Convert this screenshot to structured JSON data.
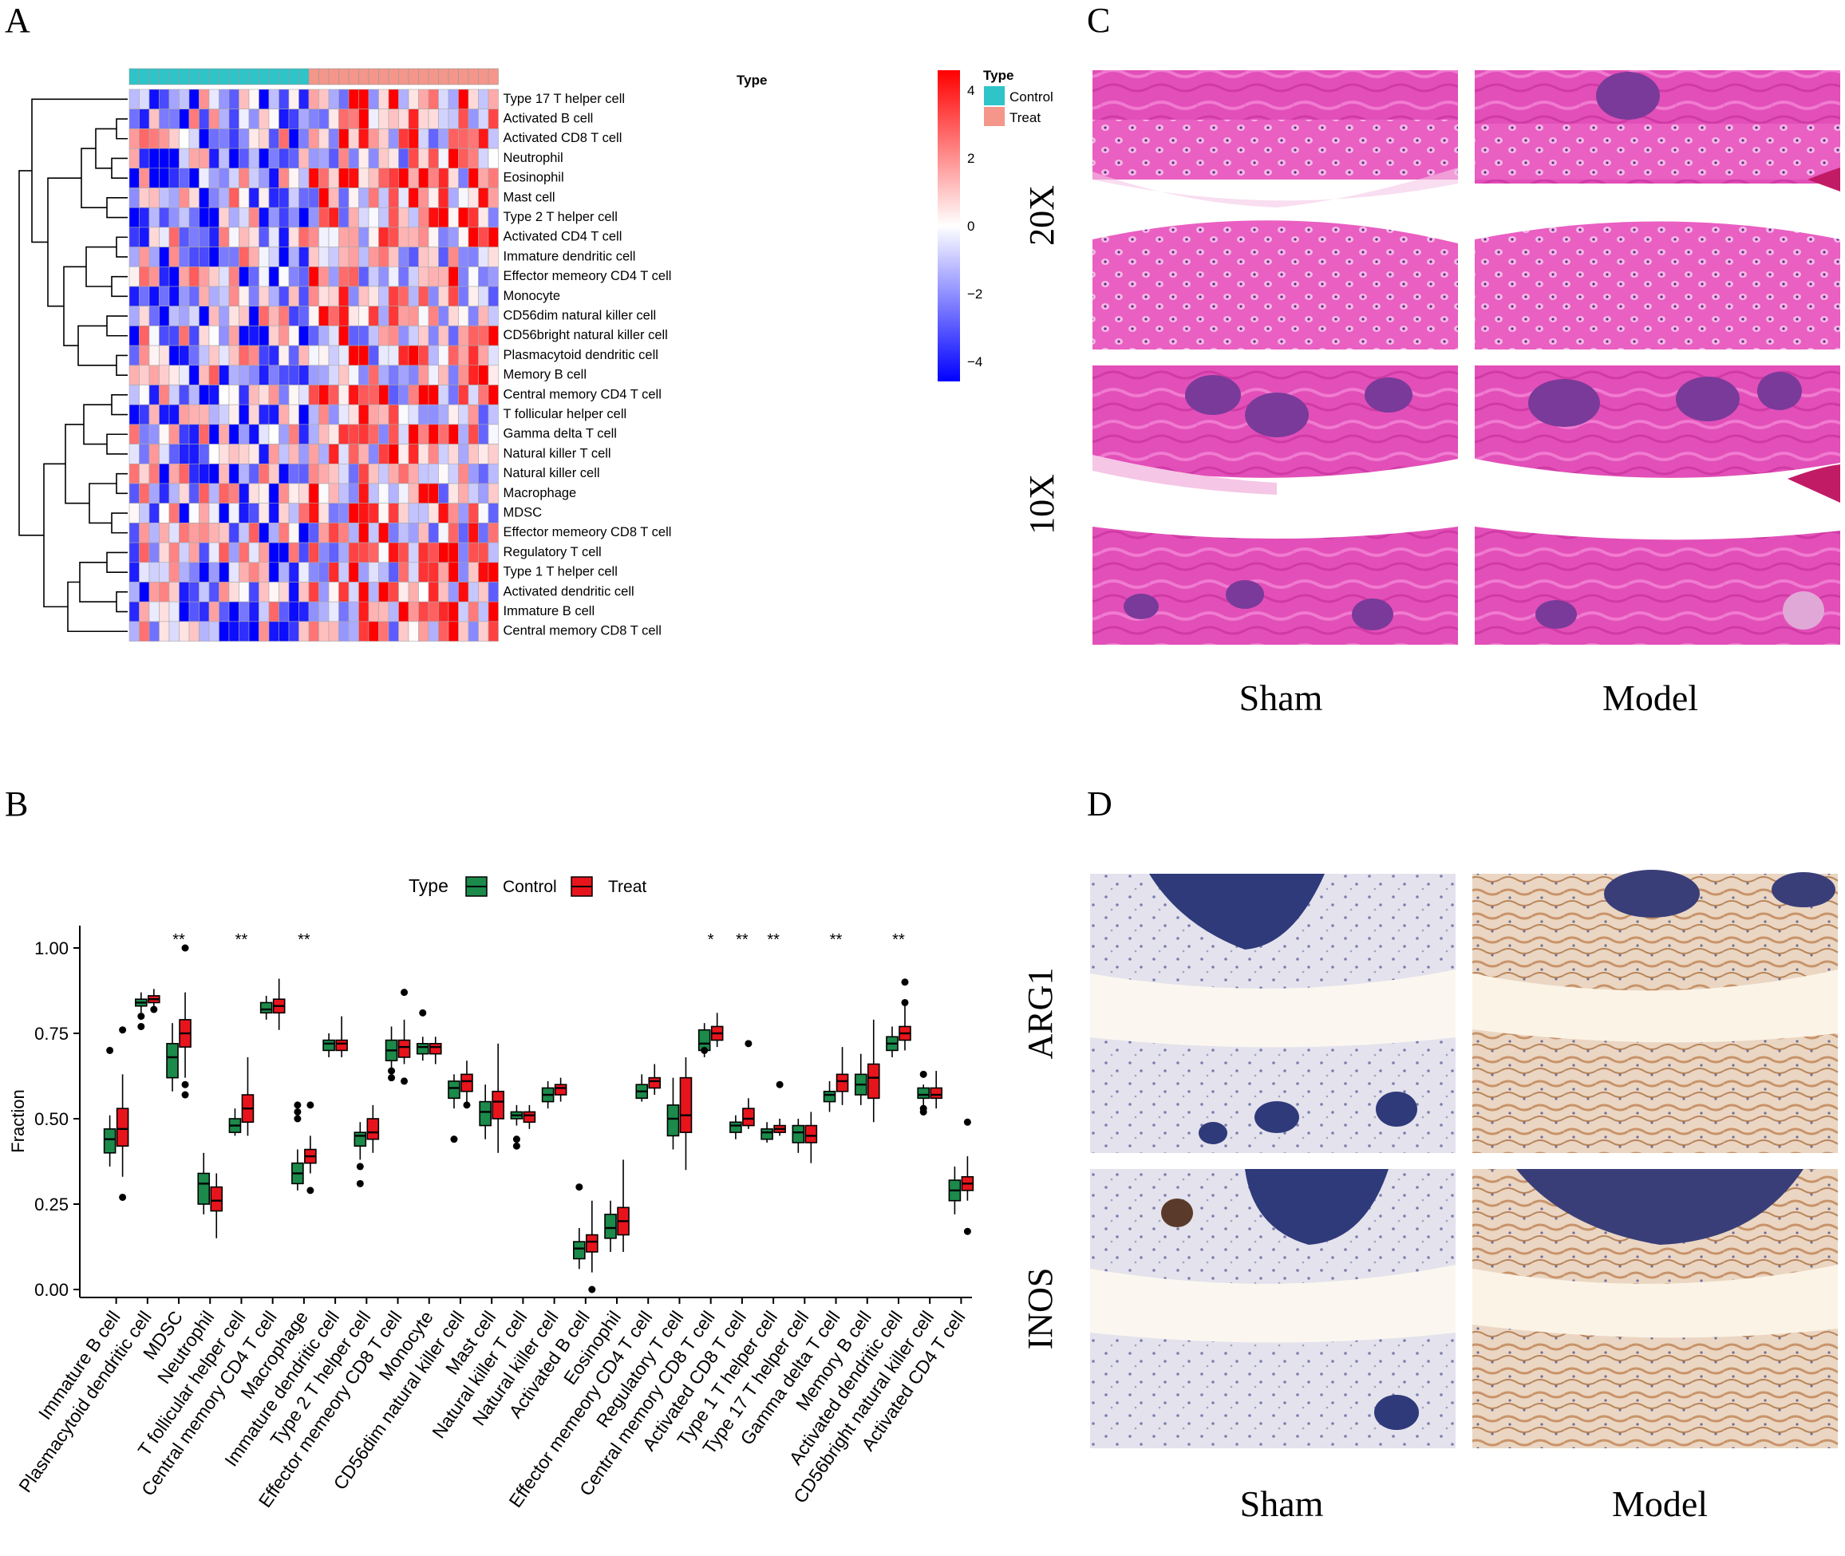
{
  "panels": {
    "a": "A",
    "b": "B",
    "c": "C",
    "d": "D"
  },
  "heatmap": {
    "annotation_label": "Type",
    "legend_title": "Type",
    "groups": [
      {
        "name": "Control",
        "color": "#2ec4c8",
        "count": 18
      },
      {
        "name": "Treat",
        "color": "#f4968a",
        "count": 19
      }
    ],
    "color_scale": {
      "low": "#0000ff",
      "mid": "#ffffff",
      "high": "#ff0000",
      "ticks": [
        "4",
        "2",
        "0",
        "−2",
        "−4"
      ]
    },
    "rows": [
      "Type 17 T helper cell",
      "Activated B cell",
      "Activated CD8 T cell",
      "Neutrophil",
      "Eosinophil",
      "Mast cell",
      "Type 2 T helper cell",
      "Activated CD4 T cell",
      "Immature dendritic cell",
      "Effector memeory CD4 T cell",
      "Monocyte",
      "CD56dim natural killer cell",
      "CD56bright natural killer cell",
      "Plasmacytoid dendritic cell",
      "Memory B cell",
      "Central memory CD4 T cell",
      "T follicular helper cell",
      "Gamma delta T cell",
      "Natural killer T cell",
      "Natural killer cell",
      "Macrophage",
      "MDSC",
      "Effector memeory CD8 T cell",
      "Regulatory T cell",
      "Type 1 T helper cell",
      "Activated dendritic cell",
      "Immature  B cell",
      "Central memory CD8 T cell"
    ]
  },
  "chart_data": {
    "type": "box",
    "legend": {
      "title": "Type",
      "items": [
        {
          "name": "Control",
          "color": "#1b8a4a"
        },
        {
          "name": "Treat",
          "color": "#e8141c"
        }
      ],
      "placement": "top"
    },
    "ylabel": "Fraction",
    "ylim": [
      0,
      1.0
    ],
    "yticks": [
      "0.00",
      "0.25",
      "0.50",
      "0.75",
      "1.00"
    ],
    "categories": [
      "Immature  B cell",
      "Plasmacytoid dendritic cell",
      "MDSC",
      "Neutrophil",
      "T follicular helper cell",
      "Central memory CD4 T cell",
      "Macrophage",
      "Immature dendritic cell",
      "Type 2 T helper cell",
      "Effector memeory CD8 T cell",
      "Monocyte",
      "CD56dim natural killer cell",
      "Mast cell",
      "Natural killer T cell",
      "Natural killer cell",
      "Activated B cell",
      "Eosinophil",
      "Effector memeory CD4 T cell",
      "Regulatory T cell",
      "Central memory CD8 T cell",
      "Activated CD8 T cell",
      "Type 1 T helper cell",
      "Type 17 T helper cell",
      "Gamma delta T cell",
      "Memory B cell",
      "Activated dendritic cell",
      "CD56bright natural killer cell",
      "Activated CD4 T cell"
    ],
    "significance": [
      "",
      "",
      "**",
      "",
      "**",
      "",
      "**",
      "",
      "",
      "",
      "",
      "",
      "",
      "",
      "",
      "",
      "",
      "",
      "",
      "*",
      "**",
      "**",
      "",
      "**",
      "",
      "**",
      "",
      ""
    ],
    "control": [
      [
        0.36,
        0.4,
        0.44,
        0.47,
        0.51
      ],
      [
        0.81,
        0.83,
        0.84,
        0.85,
        0.87
      ],
      [
        0.58,
        0.62,
        0.68,
        0.72,
        0.78
      ],
      [
        0.22,
        0.25,
        0.31,
        0.34,
        0.4
      ],
      [
        0.45,
        0.46,
        0.48,
        0.5,
        0.53
      ],
      [
        0.79,
        0.81,
        0.82,
        0.84,
        0.86
      ],
      [
        0.29,
        0.31,
        0.34,
        0.37,
        0.41
      ],
      [
        0.68,
        0.7,
        0.72,
        0.73,
        0.75
      ],
      [
        0.38,
        0.42,
        0.45,
        0.46,
        0.49
      ],
      [
        0.64,
        0.67,
        0.7,
        0.73,
        0.77
      ],
      [
        0.67,
        0.69,
        0.71,
        0.72,
        0.74
      ],
      [
        0.53,
        0.56,
        0.59,
        0.61,
        0.63
      ],
      [
        0.44,
        0.48,
        0.52,
        0.55,
        0.6
      ],
      [
        0.48,
        0.5,
        0.51,
        0.52,
        0.54
      ],
      [
        0.53,
        0.55,
        0.57,
        0.59,
        0.61
      ],
      [
        0.06,
        0.09,
        0.12,
        0.14,
        0.18
      ],
      [
        0.11,
        0.15,
        0.18,
        0.22,
        0.26
      ],
      [
        0.55,
        0.56,
        0.58,
        0.6,
        0.63
      ],
      [
        0.41,
        0.45,
        0.5,
        0.54,
        0.62
      ],
      [
        0.68,
        0.7,
        0.72,
        0.76,
        0.78
      ],
      [
        0.44,
        0.46,
        0.48,
        0.49,
        0.51
      ],
      [
        0.43,
        0.44,
        0.46,
        0.47,
        0.49
      ],
      [
        0.4,
        0.43,
        0.46,
        0.48,
        0.5
      ],
      [
        0.52,
        0.55,
        0.57,
        0.58,
        0.61
      ],
      [
        0.54,
        0.57,
        0.6,
        0.63,
        0.69
      ],
      [
        0.68,
        0.7,
        0.72,
        0.74,
        0.77
      ],
      [
        0.54,
        0.56,
        0.57,
        0.59,
        0.6
      ],
      [
        0.22,
        0.26,
        0.29,
        0.32,
        0.36
      ]
    ],
    "treat": [
      [
        0.33,
        0.42,
        0.47,
        0.53,
        0.63
      ],
      [
        0.83,
        0.84,
        0.85,
        0.86,
        0.88
      ],
      [
        0.62,
        0.71,
        0.75,
        0.79,
        0.87
      ],
      [
        0.15,
        0.23,
        0.26,
        0.3,
        0.34
      ],
      [
        0.45,
        0.49,
        0.53,
        0.57,
        0.68
      ],
      [
        0.76,
        0.81,
        0.83,
        0.85,
        0.91
      ],
      [
        0.34,
        0.37,
        0.39,
        0.41,
        0.45
      ],
      [
        0.68,
        0.7,
        0.72,
        0.73,
        0.8
      ],
      [
        0.4,
        0.44,
        0.46,
        0.5,
        0.54
      ],
      [
        0.66,
        0.68,
        0.71,
        0.73,
        0.79
      ],
      [
        0.66,
        0.69,
        0.71,
        0.72,
        0.74
      ],
      [
        0.55,
        0.58,
        0.61,
        0.63,
        0.67
      ],
      [
        0.4,
        0.5,
        0.55,
        0.58,
        0.72
      ],
      [
        0.47,
        0.49,
        0.51,
        0.52,
        0.54
      ],
      [
        0.55,
        0.57,
        0.59,
        0.6,
        0.62
      ],
      [
        0.05,
        0.11,
        0.14,
        0.16,
        0.26
      ],
      [
        0.11,
        0.16,
        0.2,
        0.24,
        0.38
      ],
      [
        0.57,
        0.59,
        0.61,
        0.62,
        0.66
      ],
      [
        0.35,
        0.46,
        0.51,
        0.62,
        0.68
      ],
      [
        0.71,
        0.73,
        0.75,
        0.77,
        0.81
      ],
      [
        0.47,
        0.48,
        0.5,
        0.53,
        0.56
      ],
      [
        0.45,
        0.46,
        0.47,
        0.48,
        0.5
      ],
      [
        0.37,
        0.43,
        0.45,
        0.48,
        0.52
      ],
      [
        0.54,
        0.58,
        0.61,
        0.63,
        0.71
      ],
      [
        0.49,
        0.56,
        0.62,
        0.66,
        0.79
      ],
      [
        0.7,
        0.73,
        0.75,
        0.77,
        0.83
      ],
      [
        0.53,
        0.56,
        0.57,
        0.59,
        0.64
      ],
      [
        0.26,
        0.29,
        0.31,
        0.33,
        0.39
      ]
    ],
    "control_outliers": [
      [
        0.7
      ],
      [
        0.77,
        0.8
      ],
      [],
      [],
      [],
      [],
      [
        0.5,
        0.52,
        0.54
      ],
      [],
      [
        0.36,
        0.31
      ],
      [
        0.62,
        0.64
      ],
      [
        0.81
      ],
      [
        0.44
      ],
      [],
      [
        0.42,
        0.44
      ],
      [],
      [
        0.3
      ],
      [],
      [],
      [],
      [
        0.7
      ],
      [],
      [],
      [],
      [],
      [],
      [],
      [
        0.52,
        0.53,
        0.63
      ],
      []
    ],
    "treat_outliers": [
      [
        0.27,
        0.76
      ],
      [
        0.82
      ],
      [
        0.57,
        0.6,
        1.0
      ],
      [],
      [],
      [],
      [
        0.29,
        0.54
      ],
      [],
      [],
      [
        0.61,
        0.87
      ],
      [],
      [
        0.54
      ],
      [],
      [],
      [],
      [
        0.0
      ],
      [],
      [],
      [],
      [],
      [
        0.72
      ],
      [
        0.6
      ],
      [],
      [],
      [],
      [
        0.84,
        0.9
      ],
      [],
      [
        0.17,
        0.49
      ]
    ]
  },
  "histology_he": {
    "rows": [
      "20X",
      "10X"
    ],
    "cols": [
      "Sham",
      "Model"
    ]
  },
  "histology_ihc": {
    "rows": [
      "ARG1",
      "INOS"
    ],
    "cols": [
      "Sham",
      "Model"
    ]
  }
}
